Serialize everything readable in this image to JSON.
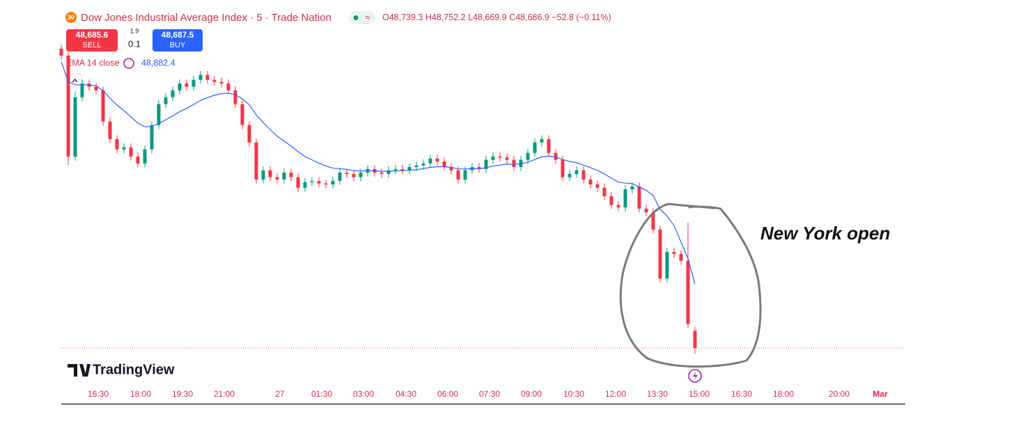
{
  "header": {
    "badge": "30",
    "symbol": "Dow Jones Industrial Average Index · 5 · Trade Nation",
    "ohlc": [
      {
        "key": "O",
        "value": "48,739.3"
      },
      {
        "key": "H",
        "value": "48,752.2"
      },
      {
        "key": "L",
        "value": "48,669.9"
      },
      {
        "key": "C",
        "value": "48,686.9"
      }
    ],
    "change": "−52.8 (−0.11%)"
  },
  "trade": {
    "sell_price": "48,685.6",
    "sell": "SELL",
    "spread": "1.9",
    "quantity": "0.1",
    "buy_price": "48,687.5",
    "buy": "BUY"
  },
  "indicator": {
    "name": "EMA 14 close",
    "value": "48,882.4"
  },
  "watermark": "TradingView",
  "annotation": "New York open",
  "chart_data": {
    "type": "candlestick",
    "open": [
      49600,
      49579,
      49271,
      49452,
      49494,
      49484,
      49473,
      49378,
      49324,
      49293,
      49299,
      49271,
      49250,
      49293,
      49367,
      49431,
      49452,
      49473,
      49494,
      49484,
      49505,
      49520,
      49505,
      49499,
      49494,
      49473,
      49431,
      49367,
      49314,
      49201,
      49229,
      49208,
      49201,
      49222,
      49208,
      49176,
      49193,
      49196,
      49189,
      49186,
      49197,
      49222,
      49218,
      49208,
      49222,
      49233,
      49222,
      49218,
      49229,
      49233,
      49229,
      49239,
      49244,
      49250,
      49265,
      49256,
      49239,
      49229,
      49201,
      49229,
      49239,
      49233,
      49261,
      49271,
      49268,
      49261,
      49239,
      49261,
      49282,
      49314,
      49324,
      49282,
      49261,
      49208,
      49218,
      49229,
      49201,
      49186,
      49176,
      49150,
      49123,
      49116,
      49171,
      49180,
      49112,
      49101,
      49048,
      48899,
      48980,
      48974,
      48953,
      48739.3
    ],
    "high": [
      49612,
      49591,
      49470,
      49506,
      49506,
      49496,
      49485,
      49390,
      49336,
      49311,
      49311,
      49283,
      49305,
      49379,
      49443,
      49464,
      49485,
      49506,
      49506,
      49517,
      49532,
      49532,
      49517,
      49511,
      49506,
      49485,
      49443,
      49379,
      49326,
      49241,
      49241,
      49220,
      49234,
      49234,
      49220,
      49205,
      49208,
      49208,
      49201,
      49209,
      49234,
      49234,
      49230,
      49234,
      49245,
      49245,
      49234,
      49241,
      49245,
      49245,
      49251,
      49256,
      49262,
      49277,
      49277,
      49268,
      49251,
      49241,
      49241,
      49251,
      49251,
      49273,
      49283,
      49283,
      49280,
      49273,
      49273,
      49294,
      49326,
      49336,
      49336,
      49294,
      49273,
      49230,
      49241,
      49241,
      49213,
      49198,
      49188,
      49162,
      49135,
      49183,
      49192,
      49192,
      49124,
      49113,
      49060,
      48992,
      48992,
      48986,
      49069,
      48752.2
    ],
    "low": [
      49567,
      49245,
      49259,
      49440,
      49472,
      49461,
      49366,
      49312,
      49281,
      49281,
      49259,
      49238,
      49238,
      49281,
      49355,
      49419,
      49440,
      49461,
      49472,
      49472,
      49493,
      49493,
      49487,
      49482,
      49461,
      49419,
      49355,
      49302,
      49189,
      49189,
      49196,
      49189,
      49189,
      49196,
      49164,
      49164,
      49181,
      49177,
      49174,
      49174,
      49185,
      49206,
      49196,
      49196,
      49210,
      49210,
      49206,
      49206,
      49217,
      49217,
      49217,
      49227,
      49232,
      49238,
      49244,
      49227,
      49217,
      49189,
      49189,
      49217,
      49221,
      49221,
      49249,
      49256,
      49249,
      49227,
      49227,
      49249,
      49270,
      49302,
      49270,
      49249,
      49196,
      49196,
      49206,
      49189,
      49174,
      49164,
      49138,
      49111,
      49104,
      49104,
      49159,
      49100,
      49089,
      49036,
      48887,
      48887,
      48962,
      48941,
      48748,
      48669.9
    ],
    "close": [
      49579,
      49271,
      49452,
      49494,
      49484,
      49473,
      49378,
      49324,
      49293,
      49299,
      49271,
      49250,
      49293,
      49367,
      49431,
      49452,
      49473,
      49494,
      49484,
      49505,
      49520,
      49505,
      49499,
      49494,
      49473,
      49431,
      49367,
      49314,
      49201,
      49229,
      49208,
      49201,
      49222,
      49208,
      49176,
      49193,
      49196,
      49189,
      49186,
      49197,
      49222,
      49218,
      49208,
      49222,
      49233,
      49222,
      49218,
      49229,
      49233,
      49229,
      49239,
      49244,
      49250,
      49265,
      49256,
      49239,
      49229,
      49201,
      49229,
      49239,
      49233,
      49261,
      49271,
      49268,
      49261,
      49239,
      49261,
      49282,
      49314,
      49324,
      49282,
      49261,
      49208,
      49218,
      49229,
      49201,
      49186,
      49176,
      49150,
      49123,
      49116,
      49171,
      49180,
      49112,
      49101,
      49048,
      48899,
      48980,
      48974,
      48953,
      48760,
      48686.9
    ],
    "ema": [
      49560,
      49500,
      49490,
      49490,
      49489,
      49487,
      49472,
      49449,
      49428,
      49411,
      49392,
      49373,
      49362,
      49363,
      49372,
      49383,
      49395,
      49408,
      49418,
      49430,
      49442,
      49451,
      49458,
      49463,
      49464,
      49460,
      49447,
      49429,
      49398,
      49375,
      49353,
      49333,
      49318,
      49303,
      49286,
      49271,
      49261,
      49251,
      49242,
      49236,
      49234,
      49232,
      49228,
      49227,
      49228,
      49227,
      49226,
      49226,
      49227,
      49228,
      49229,
      49231,
      49234,
      49238,
      49240,
      49240,
      49238,
      49233,
      49233,
      49234,
      49234,
      49237,
      49242,
      49245,
      49248,
      49247,
      49249,
      49254,
      49262,
      49270,
      49272,
      49270,
      49262,
      49256,
      49252,
      49245,
      49237,
      49229,
      49218,
      49205,
      49193,
      49190,
      49189,
      49178,
      49168,
      49152,
      49110,
      49090,
      49060,
      49010,
      48960,
      48882.4
    ],
    "ylim": [
      48500,
      49600
    ],
    "up_color": "#089981",
    "down_color": "#f23645",
    "ema_color": "#2962ff",
    "x_labels": [
      "16:30",
      "18:00",
      "19:30",
      "21:00",
      "27",
      "01:30",
      "03:00",
      "04:30",
      "06:00",
      "07:30",
      "09:00",
      "10:30",
      "12:00",
      "13:30",
      "15:00",
      "16:30",
      "18:00",
      "20:00",
      "Mar"
    ]
  }
}
